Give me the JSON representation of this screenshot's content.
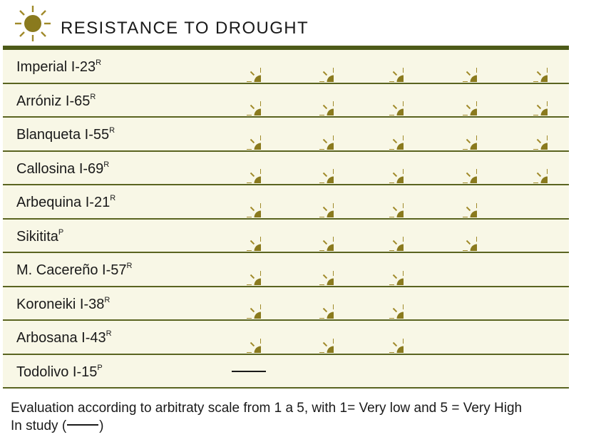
{
  "title": "RESISTANCE TO DROUGHT",
  "icon": "sun-icon",
  "colors": {
    "sun_fill": "#8a7a1e",
    "sun_rays": "#a08a2a",
    "rule": "#4d5a18",
    "table_bg": "#f8f7e6"
  },
  "chart_data": {
    "type": "table",
    "scale": "sun rating 1-5",
    "rows": [
      {
        "name": "Imperial I-23",
        "sup": "R",
        "rating": 5
      },
      {
        "name": "Arróniz I-65",
        "sup": "R",
        "rating": 5
      },
      {
        "name": "Blanqueta I-55",
        "sup": "R",
        "rating": 5
      },
      {
        "name": "Callosina  I-69",
        "sup": "R",
        "rating": 5
      },
      {
        "name": "Arbequina I-21",
        "sup": "R",
        "rating": 4
      },
      {
        "name": "Sikitita",
        "sup": "P",
        "rating": 4
      },
      {
        "name": "M. Cacereño I-57",
        "sup": "R",
        "rating": 3
      },
      {
        "name": "Koroneiki I-38",
        "sup": "R",
        "rating": 3
      },
      {
        "name": "Arbosana I-43",
        "sup": "R",
        "rating": 3
      },
      {
        "name": "Todolivo I-15",
        "sup": "P",
        "rating": null,
        "in_study": true
      }
    ]
  },
  "footnote": {
    "line1": "Evaluation according to arbitraty scale from 1 a 5, with 1= Very low and 5 = Very High",
    "line2_prefix": "In study (",
    "line2_suffix": ")"
  }
}
